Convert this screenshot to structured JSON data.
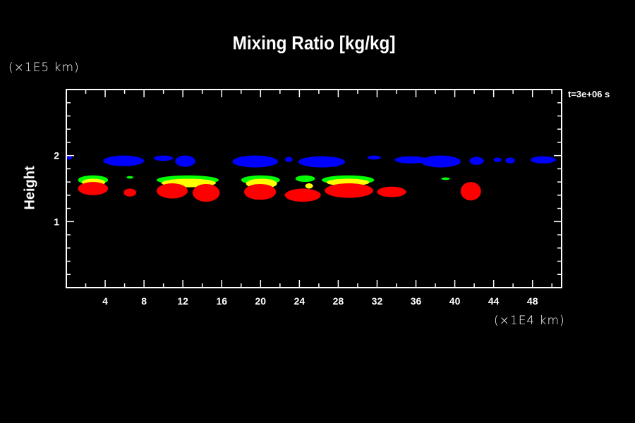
{
  "chart_data": {
    "type": "heatmap",
    "title": "Mixing Ratio [kg/kg]",
    "xlabel": "",
    "ylabel": "Height",
    "x_unit": "(×1E4 km)",
    "y_unit": "(×1E5 km)",
    "annotation": "t=3e+06 s",
    "xlim": [
      0,
      51
    ],
    "ylim": [
      0,
      3
    ],
    "x_ticks": [
      4,
      8,
      12,
      16,
      20,
      24,
      28,
      32,
      36,
      40,
      44,
      48
    ],
    "y_ticks": [
      1,
      2
    ],
    "background": "#000000",
    "colors": {
      "blue": "#0000ff",
      "green": "#00ff00",
      "yellow": "#ffff00",
      "red": "#ff0000"
    },
    "regions": [
      {
        "color": "blue",
        "x": [
          0,
          0.6
        ],
        "y": [
          1.94,
          2.0
        ]
      },
      {
        "color": "blue",
        "x": [
          3.8,
          8.0
        ],
        "y": [
          1.84,
          2.0
        ]
      },
      {
        "color": "blue",
        "x": [
          9.0,
          11.0
        ],
        "y": [
          1.92,
          2.0
        ]
      },
      {
        "color": "blue",
        "x": [
          11.2,
          13.3
        ],
        "y": [
          1.83,
          2.0
        ]
      },
      {
        "color": "blue",
        "x": [
          17.1,
          21.8
        ],
        "y": [
          1.82,
          2.0
        ]
      },
      {
        "color": "blue",
        "x": [
          22.5,
          23.3
        ],
        "y": [
          1.9,
          1.98
        ]
      },
      {
        "color": "blue",
        "x": [
          23.9,
          28.7
        ],
        "y": [
          1.82,
          1.99
        ]
      },
      {
        "color": "blue",
        "x": [
          31.0,
          32.4
        ],
        "y": [
          1.94,
          2.0
        ]
      },
      {
        "color": "blue",
        "x": [
          33.8,
          37.2
        ],
        "y": [
          1.88,
          1.99
        ]
      },
      {
        "color": "blue",
        "x": [
          36.5,
          40.6
        ],
        "y": [
          1.82,
          2.0
        ]
      },
      {
        "color": "blue",
        "x": [
          41.5,
          43.0
        ],
        "y": [
          1.86,
          1.98
        ]
      },
      {
        "color": "blue",
        "x": [
          44.0,
          44.8
        ],
        "y": [
          1.9,
          1.97
        ]
      },
      {
        "color": "blue",
        "x": [
          45.2,
          46.2
        ],
        "y": [
          1.88,
          1.97
        ]
      },
      {
        "color": "blue",
        "x": [
          47.8,
          50.4
        ],
        "y": [
          1.88,
          1.99
        ]
      },
      {
        "color": "green",
        "x": [
          1.2,
          4.3
        ],
        "y": [
          1.56,
          1.7
        ]
      },
      {
        "color": "green",
        "x": [
          9.3,
          15.7
        ],
        "y": [
          1.56,
          1.7
        ]
      },
      {
        "color": "green",
        "x": [
          18.0,
          22.0
        ],
        "y": [
          1.56,
          1.7
        ]
      },
      {
        "color": "green",
        "x": [
          23.6,
          25.6
        ],
        "y": [
          1.6,
          1.7
        ]
      },
      {
        "color": "green",
        "x": [
          26.3,
          31.7
        ],
        "y": [
          1.56,
          1.7
        ]
      },
      {
        "color": "green",
        "x": [
          6.2,
          6.9
        ],
        "y": [
          1.65,
          1.69
        ]
      },
      {
        "color": "green",
        "x": [
          38.6,
          39.5
        ],
        "y": [
          1.63,
          1.67
        ]
      },
      {
        "color": "yellow",
        "x": [
          1.6,
          4.0
        ],
        "y": [
          1.54,
          1.65
        ]
      },
      {
        "color": "yellow",
        "x": [
          9.8,
          15.4
        ],
        "y": [
          1.52,
          1.65
        ]
      },
      {
        "color": "yellow",
        "x": [
          18.5,
          21.7
        ],
        "y": [
          1.5,
          1.65
        ]
      },
      {
        "color": "yellow",
        "x": [
          24.6,
          25.4
        ],
        "y": [
          1.5,
          1.58
        ]
      },
      {
        "color": "yellow",
        "x": [
          26.8,
          31.2
        ],
        "y": [
          1.54,
          1.65
        ]
      },
      {
        "color": "red",
        "x": [
          1.2,
          4.3
        ],
        "y": [
          1.4,
          1.6
        ]
      },
      {
        "color": "red",
        "x": [
          5.9,
          7.2
        ],
        "y": [
          1.38,
          1.5
        ]
      },
      {
        "color": "red",
        "x": [
          9.3,
          12.5
        ],
        "y": [
          1.35,
          1.58
        ]
      },
      {
        "color": "red",
        "x": [
          13.0,
          15.8
        ],
        "y": [
          1.3,
          1.57
        ]
      },
      {
        "color": "red",
        "x": [
          18.3,
          21.6
        ],
        "y": [
          1.33,
          1.57
        ]
      },
      {
        "color": "red",
        "x": [
          22.5,
          26.2
        ],
        "y": [
          1.3,
          1.5
        ]
      },
      {
        "color": "red",
        "x": [
          26.6,
          31.6
        ],
        "y": [
          1.36,
          1.58
        ]
      },
      {
        "color": "red",
        "x": [
          32.0,
          35.0
        ],
        "y": [
          1.37,
          1.53
        ]
      },
      {
        "color": "red",
        "x": [
          40.6,
          42.7
        ],
        "y": [
          1.32,
          1.6
        ]
      }
    ]
  }
}
